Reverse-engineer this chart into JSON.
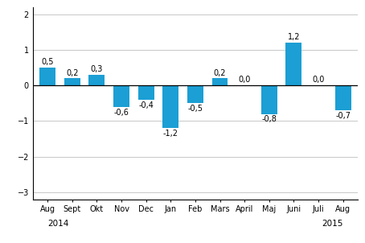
{
  "categories": [
    "Aug",
    "Sept",
    "Okt",
    "Nov",
    "Dec",
    "Jan",
    "Feb",
    "Mars",
    "April",
    "Maj",
    "Juni",
    "Juli",
    "Aug"
  ],
  "values": [
    0.5,
    0.2,
    0.3,
    -0.6,
    -0.4,
    -1.2,
    -0.5,
    0.2,
    0.0,
    -0.8,
    1.2,
    0.0,
    -0.7
  ],
  "bar_color": "#1b9fd4",
  "ylim": [
    -3.2,
    2.2
  ],
  "yticks": [
    -3,
    -2,
    -1,
    0,
    1,
    2
  ],
  "grid_color": "#c8c8c8",
  "background_color": "#ffffff",
  "label_fontsize": 7,
  "tick_fontsize": 7,
  "year_fontsize": 7.5,
  "spine_color": "#000000",
  "zero_line_color": "#000000"
}
